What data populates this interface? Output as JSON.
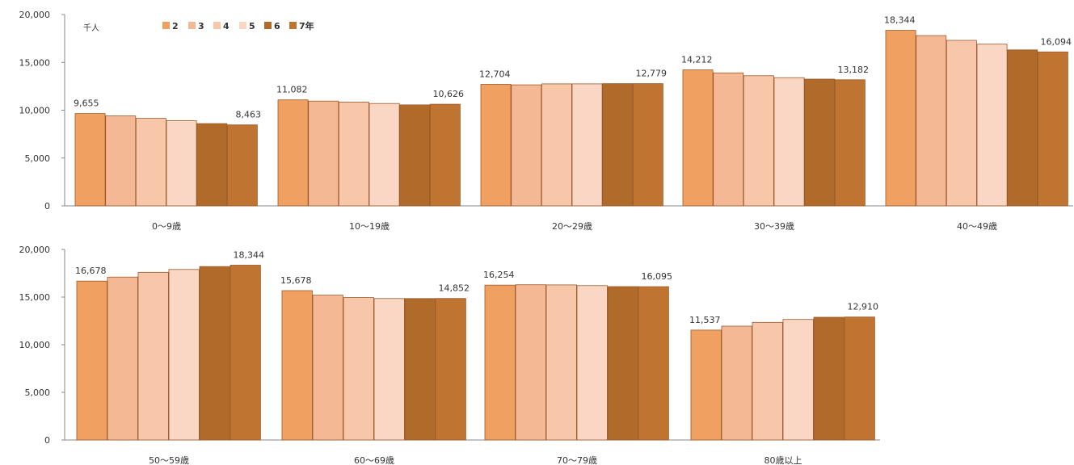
{
  "unit_label": "千人",
  "legend": {
    "items": [
      {
        "label": "2",
        "color": "#F0A060"
      },
      {
        "label": "3",
        "color": "#F5B894"
      },
      {
        "label": "4",
        "color": "#F8C7AA"
      },
      {
        "label": "5",
        "color": "#FAD7C4"
      },
      {
        "label": "6",
        "color": "#B06A2A"
      },
      {
        "label": "7年",
        "color": "#C07432"
      }
    ]
  },
  "chart_data": [
    {
      "type": "bar",
      "title": "",
      "unit": "千人",
      "series_names": [
        "2",
        "3",
        "4",
        "5",
        "6",
        "7年"
      ],
      "ylim": [
        0,
        20000
      ],
      "yticks": [
        "0",
        "5,000",
        "10,000",
        "15,000",
        "20,000"
      ],
      "groups": [
        {
          "category": "0～9歳",
          "values": [
            9655,
            9400,
            9150,
            8900,
            8600,
            8463
          ],
          "first_label": "9,655",
          "last_label": "8,463"
        },
        {
          "category": "10～19歳",
          "values": [
            11082,
            10950,
            10850,
            10700,
            10560,
            10626
          ],
          "first_label": "11,082",
          "last_label": "10,626"
        },
        {
          "category": "20～29歳",
          "values": [
            12704,
            12650,
            12750,
            12750,
            12780,
            12779
          ],
          "first_label": "12,704",
          "last_label": "12,779"
        },
        {
          "category": "30～39歳",
          "values": [
            14212,
            13900,
            13600,
            13400,
            13250,
            13182
          ],
          "first_label": "14,212",
          "last_label": "13,182"
        },
        {
          "category": "40～49歳",
          "values": [
            18344,
            17800,
            17300,
            16900,
            16300,
            16094
          ],
          "first_label": "18,344",
          "last_label": "16,094"
        }
      ]
    },
    {
      "type": "bar",
      "title": "",
      "unit": "千人",
      "series_names": [
        "2",
        "3",
        "4",
        "5",
        "6",
        "7年"
      ],
      "ylim": [
        0,
        20000
      ],
      "yticks": [
        "0",
        "5,000",
        "10,000",
        "15,000",
        "20,000"
      ],
      "groups": [
        {
          "category": "50～59歳",
          "values": [
            16678,
            17100,
            17600,
            17900,
            18200,
            18344
          ],
          "first_label": "16,678",
          "last_label": "18,344"
        },
        {
          "category": "60～69歳",
          "values": [
            15678,
            15200,
            14950,
            14850,
            14850,
            14852
          ],
          "first_label": "15,678",
          "last_label": "14,852"
        },
        {
          "category": "70～79歳",
          "values": [
            16254,
            16300,
            16280,
            16200,
            16100,
            16095
          ],
          "first_label": "16,254",
          "last_label": "16,095"
        },
        {
          "category": "80歳以上",
          "values": [
            11537,
            11950,
            12350,
            12650,
            12880,
            12910
          ],
          "first_label": "11,537",
          "last_label": "12,910"
        }
      ]
    }
  ]
}
